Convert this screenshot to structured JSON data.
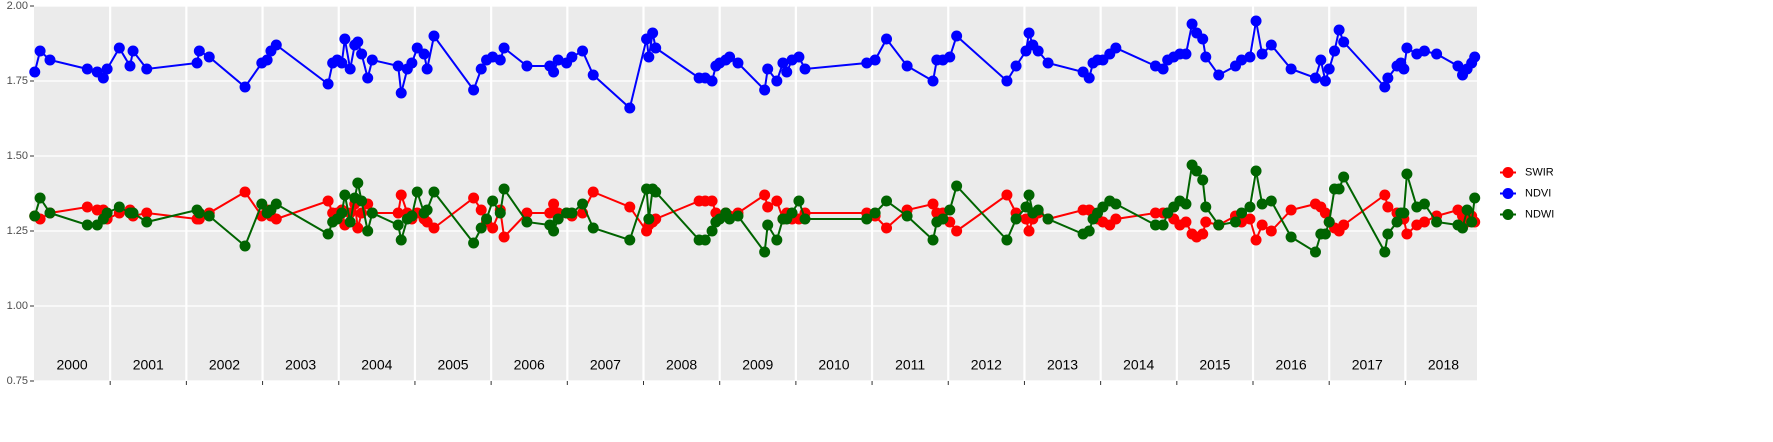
{
  "chart_data": {
    "type": "line",
    "x": [
      2000.01,
      2000.08,
      2000.21,
      2000.7,
      2000.83,
      2000.91,
      2000.96,
      2001.12,
      2001.26,
      2001.3,
      2001.48,
      2002.14,
      2002.17,
      2002.3,
      2002.77,
      2002.99,
      2003.06,
      2003.11,
      2003.18,
      2003.86,
      2003.92,
      2003.98,
      2004.04,
      2004.08,
      2004.15,
      2004.21,
      2004.25,
      2004.3,
      2004.38,
      2004.44,
      2004.78,
      2004.82,
      2004.9,
      2004.96,
      2005.03,
      2005.12,
      2005.16,
      2005.25,
      2005.77,
      2005.87,
      2005.94,
      2006.02,
      2006.12,
      2006.17,
      2006.47,
      2006.77,
      2006.82,
      2006.88,
      2006.99,
      2007.06,
      2007.2,
      2007.34,
      2007.82,
      2008.04,
      2008.07,
      2008.12,
      2008.16,
      2008.73,
      2008.81,
      2008.9,
      2008.95,
      2009.0,
      2009.08,
      2009.13,
      2009.24,
      2009.59,
      2009.63,
      2009.75,
      2009.83,
      2009.88,
      2009.95,
      2010.04,
      2010.12,
      2010.93,
      2011.04,
      2011.19,
      2011.46,
      2011.8,
      2011.85,
      2011.93,
      2012.02,
      2012.11,
      2012.77,
      2012.89,
      2013.02,
      2013.06,
      2013.11,
      2013.18,
      2013.31,
      2013.77,
      2013.85,
      2013.9,
      2013.96,
      2014.03,
      2014.12,
      2014.2,
      2014.72,
      2014.82,
      2014.88,
      2014.96,
      2015.04,
      2015.12,
      2015.2,
      2015.26,
      2015.34,
      2015.38,
      2015.55,
      2015.77,
      2015.85,
      2015.96,
      2016.04,
      2016.12,
      2016.24,
      2016.5,
      2016.82,
      2016.89,
      2016.95,
      2017.0,
      2017.07,
      2017.13,
      2017.19,
      2017.73,
      2017.77,
      2017.89,
      2017.94,
      2017.98,
      2018.02,
      2018.15,
      2018.25,
      2018.41,
      2018.69,
      2018.75,
      2018.81,
      2018.87,
      2018.91
    ],
    "series": [
      {
        "name": "SWIR",
        "color": "#ff0000",
        "values": [
          1.3,
          1.29,
          1.31,
          1.33,
          1.32,
          1.32,
          1.29,
          1.31,
          1.32,
          1.3,
          1.31,
          1.29,
          1.29,
          1.31,
          1.38,
          1.3,
          1.32,
          1.3,
          1.29,
          1.35,
          1.31,
          1.31,
          1.32,
          1.27,
          1.31,
          1.34,
          1.26,
          1.31,
          1.34,
          1.31,
          1.31,
          1.37,
          1.31,
          1.29,
          1.31,
          1.29,
          1.28,
          1.26,
          1.36,
          1.32,
          1.28,
          1.26,
          1.32,
          1.23,
          1.31,
          1.31,
          1.34,
          1.31,
          1.31,
          1.3,
          1.31,
          1.38,
          1.33,
          1.25,
          1.27,
          1.28,
          1.29,
          1.35,
          1.35,
          1.35,
          1.31,
          1.3,
          1.31,
          1.3,
          1.31,
          1.37,
          1.33,
          1.35,
          1.29,
          1.31,
          1.29,
          1.29,
          1.31,
          1.31,
          1.3,
          1.26,
          1.32,
          1.34,
          1.31,
          1.31,
          1.28,
          1.25,
          1.37,
          1.31,
          1.29,
          1.25,
          1.29,
          1.31,
          1.29,
          1.32,
          1.32,
          1.31,
          1.29,
          1.28,
          1.27,
          1.29,
          1.31,
          1.31,
          1.31,
          1.29,
          1.27,
          1.28,
          1.24,
          1.23,
          1.24,
          1.28,
          1.27,
          1.3,
          1.28,
          1.29,
          1.22,
          1.27,
          1.25,
          1.32,
          1.34,
          1.33,
          1.31,
          1.28,
          1.26,
          1.25,
          1.27,
          1.37,
          1.33,
          1.31,
          1.3,
          1.29,
          1.24,
          1.27,
          1.28,
          1.3,
          1.32,
          1.3,
          1.28,
          1.3,
          1.28
        ]
      },
      {
        "name": "NDVI",
        "color": "#0000ff",
        "values": [
          1.78,
          1.85,
          1.82,
          1.79,
          1.78,
          1.76,
          1.79,
          1.86,
          1.8,
          1.85,
          1.79,
          1.81,
          1.85,
          1.83,
          1.73,
          1.81,
          1.82,
          1.85,
          1.87,
          1.74,
          1.81,
          1.82,
          1.81,
          1.89,
          1.79,
          1.87,
          1.88,
          1.84,
          1.76,
          1.82,
          1.8,
          1.71,
          1.79,
          1.81,
          1.86,
          1.84,
          1.79,
          1.9,
          1.72,
          1.79,
          1.82,
          1.83,
          1.82,
          1.86,
          1.8,
          1.8,
          1.78,
          1.82,
          1.81,
          1.83,
          1.85,
          1.77,
          1.66,
          1.89,
          1.83,
          1.91,
          1.86,
          1.76,
          1.76,
          1.75,
          1.8,
          1.81,
          1.82,
          1.83,
          1.81,
          1.72,
          1.79,
          1.75,
          1.81,
          1.78,
          1.82,
          1.83,
          1.79,
          1.81,
          1.82,
          1.89,
          1.8,
          1.75,
          1.82,
          1.82,
          1.83,
          1.9,
          1.75,
          1.8,
          1.85,
          1.91,
          1.87,
          1.85,
          1.81,
          1.78,
          1.76,
          1.81,
          1.82,
          1.82,
          1.84,
          1.86,
          1.8,
          1.79,
          1.82,
          1.83,
          1.84,
          1.84,
          1.94,
          1.91,
          1.89,
          1.83,
          1.77,
          1.8,
          1.82,
          1.83,
          1.95,
          1.84,
          1.87,
          1.79,
          1.76,
          1.82,
          1.75,
          1.79,
          1.85,
          1.92,
          1.88,
          1.73,
          1.76,
          1.8,
          1.81,
          1.79,
          1.86,
          1.84,
          1.85,
          1.84,
          1.8,
          1.77,
          1.79,
          1.81,
          1.83
        ]
      },
      {
        "name": "NDWI",
        "color": "#006400",
        "values": [
          1.3,
          1.36,
          1.31,
          1.27,
          1.27,
          1.29,
          1.31,
          1.33,
          1.31,
          1.31,
          1.28,
          1.32,
          1.31,
          1.3,
          1.2,
          1.34,
          1.31,
          1.32,
          1.34,
          1.24,
          1.28,
          1.29,
          1.31,
          1.37,
          1.28,
          1.36,
          1.41,
          1.35,
          1.25,
          1.31,
          1.27,
          1.22,
          1.29,
          1.3,
          1.38,
          1.31,
          1.32,
          1.38,
          1.21,
          1.26,
          1.29,
          1.35,
          1.31,
          1.39,
          1.28,
          1.27,
          1.25,
          1.29,
          1.31,
          1.31,
          1.34,
          1.26,
          1.22,
          1.39,
          1.29,
          1.39,
          1.38,
          1.22,
          1.22,
          1.25,
          1.28,
          1.29,
          1.31,
          1.29,
          1.3,
          1.18,
          1.27,
          1.22,
          1.29,
          1.29,
          1.31,
          1.35,
          1.29,
          1.29,
          1.31,
          1.35,
          1.3,
          1.22,
          1.28,
          1.29,
          1.32,
          1.4,
          1.22,
          1.29,
          1.33,
          1.37,
          1.31,
          1.32,
          1.29,
          1.24,
          1.25,
          1.29,
          1.31,
          1.33,
          1.35,
          1.34,
          1.27,
          1.27,
          1.31,
          1.33,
          1.35,
          1.34,
          1.47,
          1.45,
          1.42,
          1.33,
          1.27,
          1.28,
          1.31,
          1.33,
          1.45,
          1.34,
          1.35,
          1.23,
          1.18,
          1.24,
          1.24,
          1.28,
          1.39,
          1.39,
          1.43,
          1.18,
          1.24,
          1.28,
          1.31,
          1.31,
          1.44,
          1.33,
          1.34,
          1.28,
          1.27,
          1.26,
          1.32,
          1.28,
          1.36
        ]
      }
    ],
    "xlim": [
      2000,
      2018.94
    ],
    "xticks": [
      2001,
      2002,
      2003,
      2004,
      2005,
      2006,
      2007,
      2008,
      2009,
      2010,
      2011,
      2012,
      2013,
      2014,
      2015,
      2016,
      2017,
      2018
    ],
    "ylim": [
      0.75,
      2.0
    ],
    "yticks": [
      {
        "value": 0.75,
        "label": "0.75"
      },
      {
        "value": 1.0,
        "label": "1.00"
      },
      {
        "value": 1.25,
        "label": "1.25"
      },
      {
        "value": 1.5,
        "label": "1.50"
      },
      {
        "value": 1.75,
        "label": "1.75"
      },
      {
        "value": 2.0,
        "label": "2.00"
      }
    ],
    "annotations": [
      {
        "x": 2000.5,
        "text": "2000"
      },
      {
        "x": 2001.5,
        "text": "2001"
      },
      {
        "x": 2002.5,
        "text": "2002"
      },
      {
        "x": 2003.5,
        "text": "2003"
      },
      {
        "x": 2004.5,
        "text": "2004"
      },
      {
        "x": 2005.5,
        "text": "2005"
      },
      {
        "x": 2006.5,
        "text": "2006"
      },
      {
        "x": 2007.5,
        "text": "2007"
      },
      {
        "x": 2008.5,
        "text": "2008"
      },
      {
        "x": 2009.5,
        "text": "2009"
      },
      {
        "x": 2010.5,
        "text": "2010"
      },
      {
        "x": 2011.5,
        "text": "2011"
      },
      {
        "x": 2012.5,
        "text": "2012"
      },
      {
        "x": 2013.5,
        "text": "2013"
      },
      {
        "x": 2014.5,
        "text": "2014"
      },
      {
        "x": 2015.5,
        "text": "2015"
      },
      {
        "x": 2016.5,
        "text": "2016"
      },
      {
        "x": 2017.5,
        "text": "2017"
      },
      {
        "x": 2018.5,
        "text": "2018"
      }
    ],
    "grid": true,
    "legend": "right"
  }
}
